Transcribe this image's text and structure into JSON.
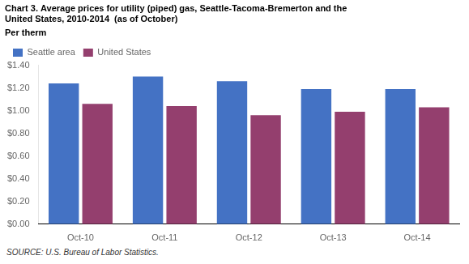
{
  "chart_data": {
    "type": "bar",
    "title": [
      "Chart 3. Average prices for utility (piped) gas, Seattle-Tacoma-Bremerton and the",
      "United States, 2010-2014  (as of October)"
    ],
    "y_label": "Per therm",
    "annotations": [
      "SOURCE: U.S. Bureau of Labor Statistics."
    ],
    "categories": [
      "Oct-10",
      "Oct-11",
      "Oct-12",
      "Oct-13",
      "Oct-14"
    ],
    "series": [
      {
        "name": "Seattle area",
        "color": "#4472C4",
        "values": [
          1.24,
          1.3,
          1.26,
          1.19,
          1.19
        ]
      },
      {
        "name": "United States",
        "color": "#943F6E",
        "values": [
          1.06,
          1.04,
          0.96,
          0.99,
          1.03
        ]
      }
    ],
    "ylim": [
      0.0,
      1.4
    ],
    "yticks": [
      {
        "value": 0.0,
        "label": "$0.00"
      },
      {
        "value": 0.2,
        "label": "$0.20"
      },
      {
        "value": 0.4,
        "label": "$0.40"
      },
      {
        "value": 0.6,
        "label": "$0.60"
      },
      {
        "value": 0.8,
        "label": "$0.80"
      },
      {
        "value": 1.0,
        "label": "$1.00"
      },
      {
        "value": 1.2,
        "label": "$1.20"
      },
      {
        "value": 1.4,
        "label": "$1.40"
      }
    ],
    "grid": false,
    "legend": "upper left"
  }
}
